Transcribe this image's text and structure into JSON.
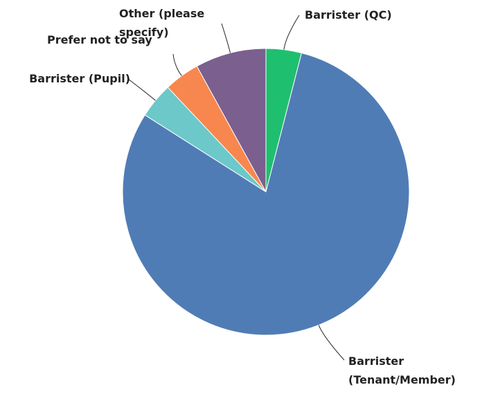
{
  "chart_data": {
    "type": "pie",
    "categories": [
      "Barrister (QC)",
      "Barrister (Tenant/Member)",
      "Barrister (Pupil)",
      "Prefer not to say",
      "Other (please specify)"
    ],
    "values": [
      4,
      80,
      4,
      4,
      8
    ],
    "colors": [
      "#1fbf70",
      "#507cb5",
      "#6cc8c9",
      "#f7874e",
      "#7b5f8f"
    ]
  }
}
